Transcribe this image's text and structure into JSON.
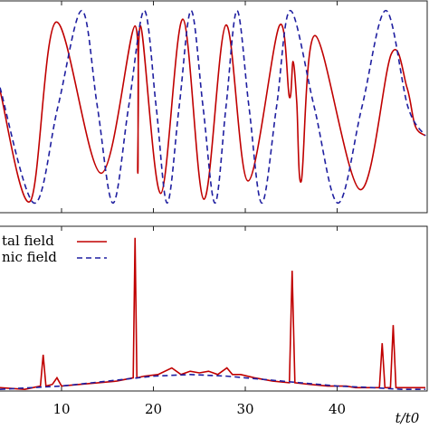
{
  "chart_data": [
    {
      "type": "line",
      "smooth": true,
      "xlim": [
        3.3,
        49.8
      ],
      "ylim": [
        -1.1,
        1.1
      ],
      "series": [
        {
          "name": "tal field",
          "color": "#c00000",
          "dash": false,
          "x": [
            3.3,
            6.6,
            9.4,
            14.3,
            18.0,
            18.3,
            18.6,
            20.8,
            23.2,
            25.5,
            27.9,
            30.3,
            33.7,
            34.8,
            35.2,
            35.6,
            36.1,
            37.6,
            42.5,
            45.9,
            47.6,
            48.5,
            49.6
          ],
          "values": [
            0.17,
            -0.98,
            0.88,
            -0.69,
            0.84,
            -0.69,
            0.84,
            -0.9,
            0.91,
            -0.96,
            0.85,
            -0.77,
            0.84,
            0.1,
            0.47,
            0.05,
            -0.77,
            0.74,
            -0.86,
            0.55,
            0.2,
            -0.2,
            -0.3
          ]
        },
        {
          "name": "nic field",
          "color": "#1f1fa0",
          "dash": true,
          "x": [
            3.3,
            7.0,
            9.6,
            12.2,
            13.9,
            15.6,
            17.3,
            19.0,
            20.3,
            21.5,
            22.8,
            24.1,
            25.4,
            26.7,
            27.9,
            29.1,
            30.4,
            31.8,
            33.4,
            34.9,
            37.5,
            40.1,
            42.7,
            45.3,
            47.7,
            49.6
          ],
          "values": [
            0.2,
            -1,
            0,
            1,
            0,
            -1,
            0,
            1,
            0,
            -1,
            0,
            1,
            0,
            -1,
            0,
            1,
            0,
            -1,
            0,
            1,
            0,
            -1,
            0,
            1,
            0,
            -0.3
          ]
        }
      ],
      "xticks": [
        10,
        20,
        30,
        40
      ]
    },
    {
      "type": "line",
      "smooth": false,
      "xlim": [
        3.3,
        49.8
      ],
      "ylim": [
        0,
        1
      ],
      "series": [
        {
          "name": "tal field",
          "color": "#c00000",
          "dash": false,
          "x": [
            3.3,
            6,
            7.7,
            8.0,
            8.3,
            9.0,
            9.5,
            10,
            12,
            14,
            16,
            17.8,
            18.0,
            18.2,
            19,
            20.5,
            22,
            23,
            24,
            25,
            26,
            27,
            28,
            28.6,
            29.5,
            31,
            33,
            34.8,
            35.1,
            35.4,
            37,
            39,
            41,
            42,
            43.5,
            44.6,
            44.9,
            45.2,
            45.8,
            46.1,
            46.4,
            49.6
          ],
          "values": [
            0.02,
            0.01,
            0.03,
            0.22,
            0.03,
            0.04,
            0.08,
            0.03,
            0.04,
            0.05,
            0.06,
            0.08,
            0.93,
            0.08,
            0.09,
            0.1,
            0.14,
            0.1,
            0.12,
            0.11,
            0.12,
            0.1,
            0.14,
            0.1,
            0.1,
            0.08,
            0.06,
            0.05,
            0.73,
            0.05,
            0.04,
            0.03,
            0.03,
            0.02,
            0.02,
            0.02,
            0.29,
            0.02,
            0.02,
            0.4,
            0.02,
            0.02
          ]
        },
        {
          "name": "nic field",
          "color": "#1f1fa0",
          "dash": true,
          "x": [
            3.3,
            10,
            15,
            20,
            24,
            28,
            32,
            36,
            40,
            44,
            47,
            49.6
          ],
          "values": [
            0.01,
            0.03,
            0.06,
            0.09,
            0.1,
            0.09,
            0.07,
            0.05,
            0.03,
            0.02,
            0.01,
            0.01
          ]
        }
      ],
      "xticks": [
        10,
        20,
        30,
        40
      ],
      "xlabel": "t/t0",
      "legend": "upper left"
    }
  ]
}
